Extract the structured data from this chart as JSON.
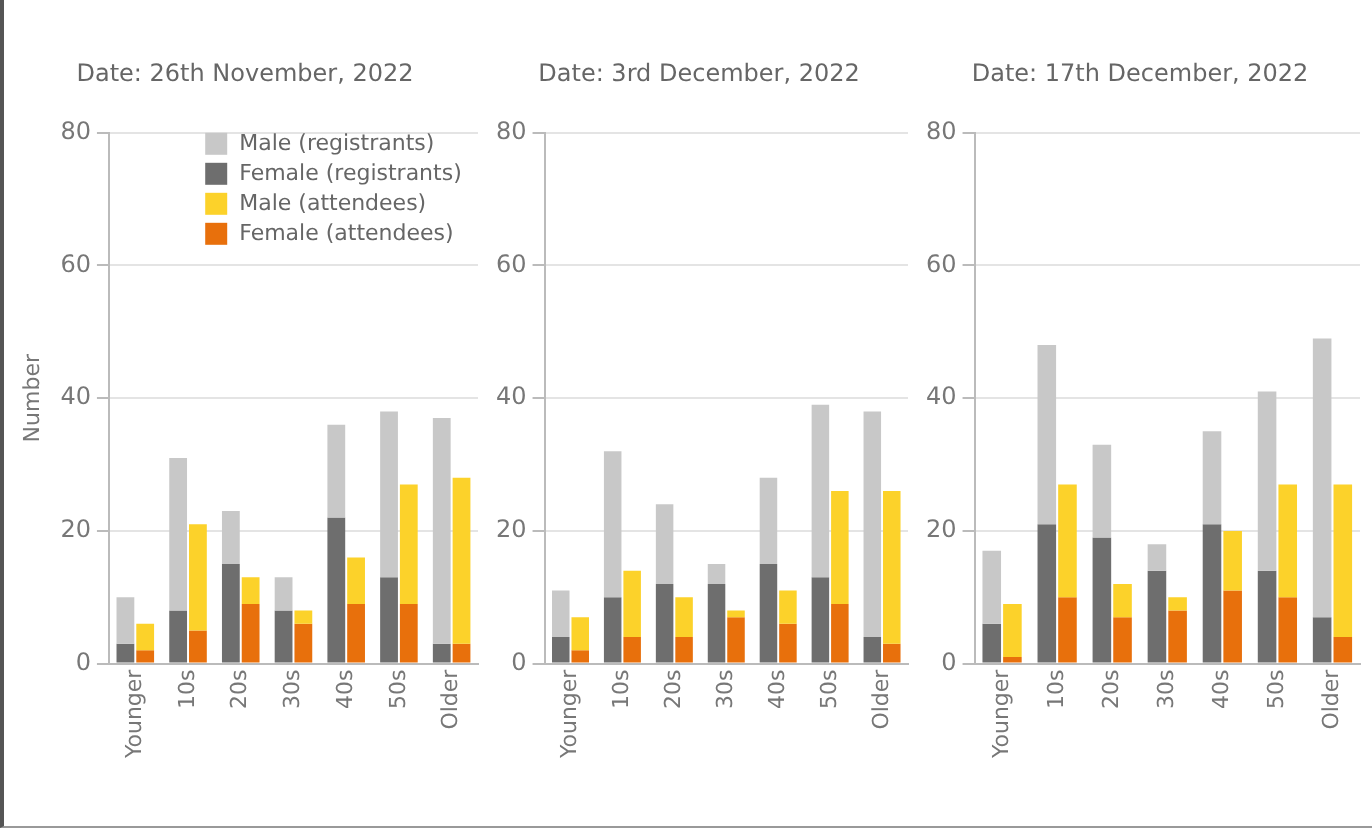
{
  "chart_data": [
    {
      "type": "bar",
      "title": "Date: 26th November, 2022",
      "ylabel": "Number",
      "categories": [
        "Younger",
        "10s",
        "20s",
        "30s",
        "40s",
        "50s",
        "Older"
      ],
      "ylim": [
        0,
        80
      ],
      "yticks": [
        0,
        20,
        40,
        60,
        80
      ],
      "grid": "y",
      "legend": "top",
      "series": [
        {
          "name": "Male (registrants)",
          "color": "#c8c8c8",
          "base": [
            3,
            8,
            15,
            8,
            22,
            13,
            3
          ],
          "values": [
            7,
            23,
            8,
            5,
            14,
            25,
            34
          ]
        },
        {
          "name": "Female (registrants)",
          "color": "#6e6e6e",
          "values": [
            3,
            8,
            15,
            8,
            22,
            13,
            3
          ]
        },
        {
          "name": "Male (attendees)",
          "color": "#fcd22a",
          "base": [
            2,
            5,
            9,
            6,
            9,
            9,
            3
          ],
          "values": [
            4,
            16,
            4,
            2,
            7,
            18,
            25
          ]
        },
        {
          "name": "Female (attendees)",
          "color": "#e8700c",
          "values": [
            2,
            5,
            9,
            6,
            9,
            9,
            3
          ]
        }
      ]
    },
    {
      "type": "bar",
      "title": "Date: 3rd December, 2022",
      "categories": [
        "Younger",
        "10s",
        "20s",
        "30s",
        "40s",
        "50s",
        "Older"
      ],
      "ylim": [
        0,
        80
      ],
      "yticks": [
        0,
        20,
        40,
        60,
        80
      ],
      "grid": "y",
      "series": [
        {
          "color": "#c8c8c8",
          "base": [
            4,
            10,
            12,
            12,
            15,
            13,
            4
          ],
          "values": [
            7,
            22,
            12,
            3,
            13,
            26,
            34
          ]
        },
        {
          "color": "#6e6e6e",
          "values": [
            4,
            10,
            12,
            12,
            15,
            13,
            4
          ]
        },
        {
          "color": "#fcd22a",
          "base": [
            2,
            4,
            4,
            7,
            6,
            9,
            3
          ],
          "values": [
            5,
            10,
            6,
            1,
            5,
            17,
            23
          ]
        },
        {
          "color": "#e8700c",
          "values": [
            2,
            4,
            4,
            7,
            6,
            9,
            3
          ]
        }
      ]
    },
    {
      "type": "bar",
      "title": "Date: 17th December, 2022",
      "categories": [
        "Younger",
        "10s",
        "20s",
        "30s",
        "40s",
        "50s",
        "Older"
      ],
      "ylim": [
        0,
        80
      ],
      "yticks": [
        0,
        20,
        40,
        60,
        80
      ],
      "grid": "y",
      "series": [
        {
          "color": "#c8c8c8",
          "base": [
            6,
            21,
            19,
            14,
            21,
            14,
            7
          ],
          "values": [
            11,
            27,
            14,
            4,
            14,
            27,
            42
          ]
        },
        {
          "color": "#6e6e6e",
          "values": [
            6,
            21,
            19,
            14,
            21,
            14,
            7
          ]
        },
        {
          "color": "#fcd22a",
          "base": [
            1,
            10,
            7,
            8,
            11,
            10,
            4
          ],
          "values": [
            8,
            17,
            5,
            2,
            9,
            17,
            23
          ]
        },
        {
          "color": "#e8700c",
          "values": [
            1,
            10,
            7,
            8,
            11,
            10,
            4
          ]
        }
      ]
    }
  ]
}
